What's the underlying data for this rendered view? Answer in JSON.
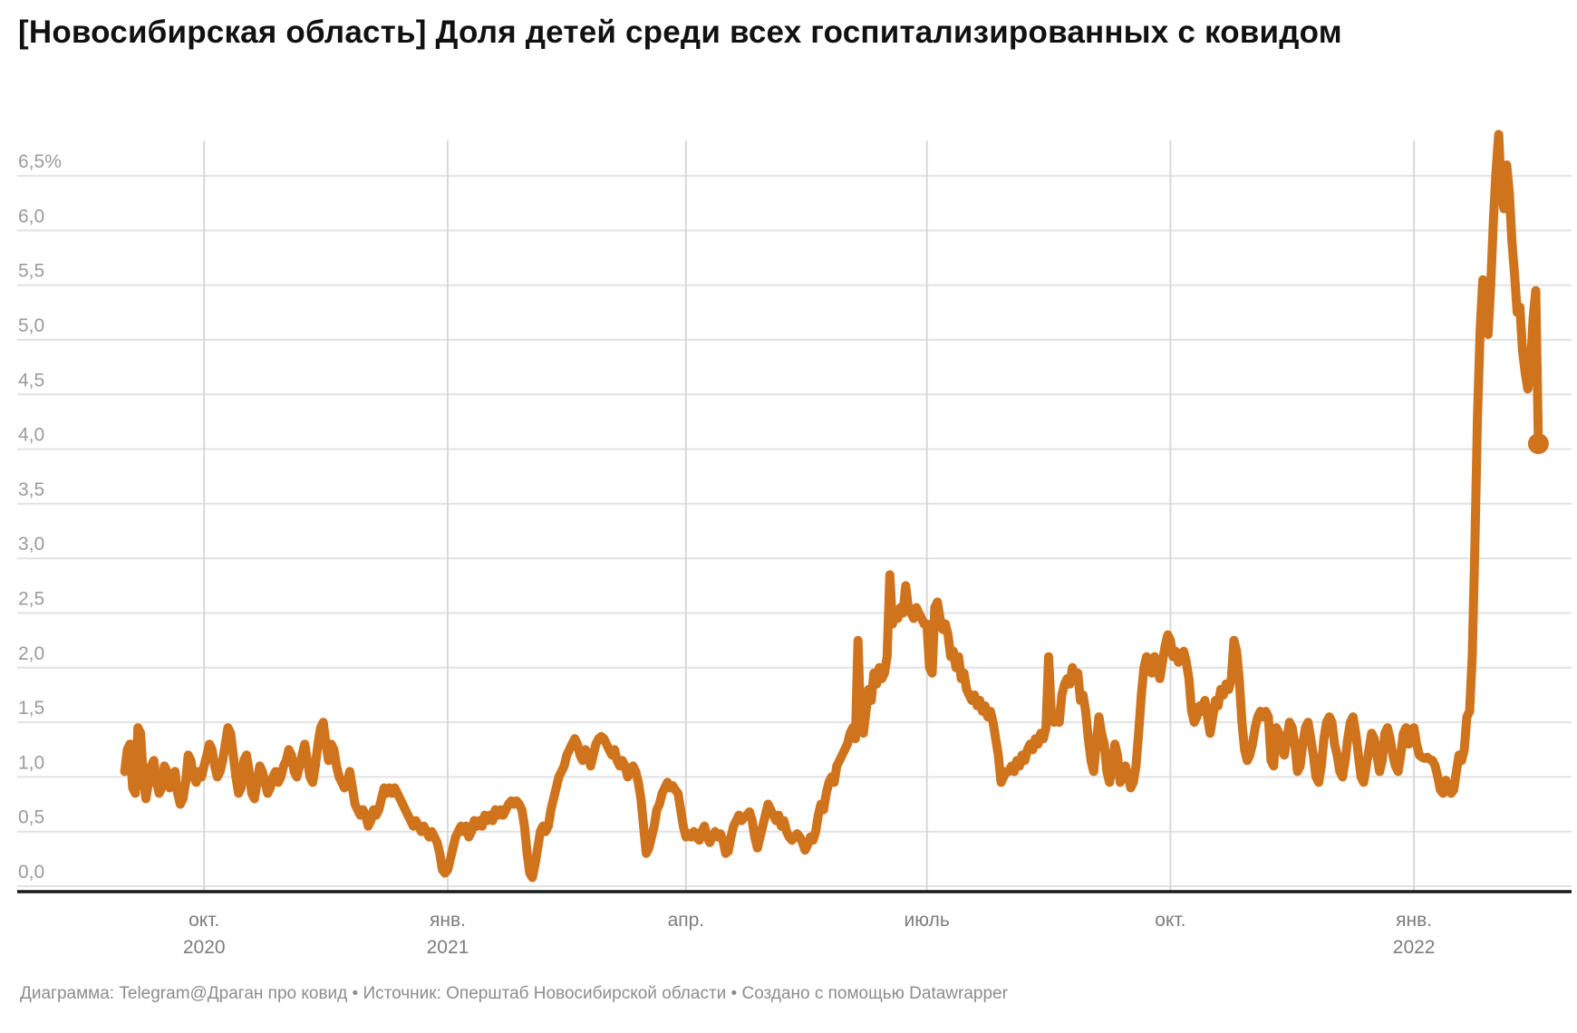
{
  "header": {
    "title": "[Новосибирская область] Доля детей среди всех госпитализированных с ковидом"
  },
  "footer": {
    "chart_label": "Диаграмма:",
    "chart_link": "Telegram@Драган про ковид",
    "separator": "•",
    "source_label": "Источник:",
    "source_name": "Оперштаб Новосибирской области",
    "created_label": "Создано с помощью",
    "tool_link": "Datawrapper"
  },
  "chart_data": {
    "type": "line",
    "title": "[Новосибирская область] Доля детей среди всех госпитализированных с ковидом",
    "unit": "%",
    "frequency": "daily",
    "start_date": "2020-09-01",
    "end_date": "2022-02-17",
    "ylim": [
      0,
      6.5
    ],
    "grid": true,
    "line_color": "#cf731d",
    "axis_color": "#191919",
    "gridline_color": "#e2e2e2",
    "vgridline_color": "#d8d8d8",
    "ylabel_color": "#9b9b9b",
    "xlabel_color": "#7d7d7d",
    "last_value": 4.05,
    "y_ticks": [
      {
        "value": 6.5,
        "label": "6,5%"
      },
      {
        "value": 6.0,
        "label": "6,0"
      },
      {
        "value": 5.5,
        "label": "5,5"
      },
      {
        "value": 5.0,
        "label": "5,0"
      },
      {
        "value": 4.5,
        "label": "4,5"
      },
      {
        "value": 4.0,
        "label": "4,0"
      },
      {
        "value": 3.5,
        "label": "3,5"
      },
      {
        "value": 3.0,
        "label": "3,0"
      },
      {
        "value": 2.5,
        "label": "2,5"
      },
      {
        "value": 2.0,
        "label": "2,0"
      },
      {
        "value": 1.5,
        "label": "1,5"
      },
      {
        "value": 1.0,
        "label": "1,0"
      },
      {
        "value": 0.5,
        "label": "0,5"
      },
      {
        "value": 0.0,
        "label": "0,0"
      }
    ],
    "x_ticks": [
      {
        "label": "окт.",
        "year": "2020",
        "index": 30
      },
      {
        "label": "янв.",
        "year": "2021",
        "index": 122
      },
      {
        "label": "апр.",
        "year": "",
        "index": 212
      },
      {
        "label": "июль",
        "year": "",
        "index": 303
      },
      {
        "label": "окт.",
        "year": "",
        "index": 395
      },
      {
        "label": "янв.",
        "year": "2022",
        "index": 487
      }
    ],
    "values": [
      1.05,
      1.25,
      1.3,
      0.9,
      0.85,
      1.45,
      1.4,
      1.0,
      0.8,
      0.95,
      1.1,
      1.15,
      0.95,
      0.85,
      0.9,
      1.1,
      1.05,
      0.9,
      1.0,
      1.05,
      0.85,
      0.75,
      0.8,
      0.95,
      1.2,
      1.15,
      1.0,
      0.95,
      1.05,
      1.0,
      1.1,
      1.2,
      1.3,
      1.25,
      1.1,
      1.0,
      1.05,
      1.15,
      1.3,
      1.45,
      1.4,
      1.2,
      1.0,
      0.85,
      0.9,
      1.15,
      1.2,
      1.05,
      0.85,
      0.8,
      0.95,
      1.1,
      1.05,
      0.95,
      0.85,
      0.9,
      1.0,
      1.05,
      0.95,
      1.0,
      1.1,
      1.15,
      1.25,
      1.2,
      1.05,
      1.0,
      1.1,
      1.2,
      1.3,
      1.15,
      1.0,
      0.95,
      1.1,
      1.3,
      1.45,
      1.5,
      1.3,
      1.15,
      1.3,
      1.25,
      1.1,
      1.0,
      0.95,
      0.9,
      0.95,
      1.05,
      0.9,
      0.75,
      0.7,
      0.65,
      0.7,
      0.65,
      0.55,
      0.6,
      0.7,
      0.65,
      0.7,
      0.8,
      0.9,
      0.85,
      0.9,
      0.85,
      0.9,
      0.85,
      0.8,
      0.75,
      0.7,
      0.65,
      0.6,
      0.55,
      0.6,
      0.55,
      0.5,
      0.55,
      0.5,
      0.45,
      0.5,
      0.45,
      0.4,
      0.3,
      0.15,
      0.12,
      0.15,
      0.25,
      0.35,
      0.45,
      0.5,
      0.55,
      0.5,
      0.55,
      0.45,
      0.5,
      0.6,
      0.55,
      0.6,
      0.55,
      0.65,
      0.6,
      0.65,
      0.6,
      0.7,
      0.65,
      0.7,
      0.65,
      0.7,
      0.75,
      0.78,
      0.75,
      0.78,
      0.75,
      0.7,
      0.55,
      0.3,
      0.12,
      0.08,
      0.2,
      0.35,
      0.5,
      0.55,
      0.5,
      0.55,
      0.7,
      0.8,
      0.9,
      1.0,
      1.05,
      1.1,
      1.2,
      1.25,
      1.3,
      1.35,
      1.3,
      1.2,
      1.15,
      1.25,
      1.2,
      1.1,
      1.2,
      1.3,
      1.35,
      1.37,
      1.35,
      1.3,
      1.25,
      1.2,
      1.25,
      1.15,
      1.1,
      1.15,
      1.1,
      1.0,
      1.05,
      1.1,
      1.05,
      0.95,
      0.8,
      0.55,
      0.3,
      0.35,
      0.45,
      0.55,
      0.7,
      0.75,
      0.85,
      0.9,
      0.95,
      0.9,
      0.92,
      0.88,
      0.85,
      0.7,
      0.55,
      0.45,
      0.48,
      0.45,
      0.5,
      0.45,
      0.42,
      0.5,
      0.55,
      0.45,
      0.4,
      0.45,
      0.5,
      0.45,
      0.48,
      0.42,
      0.3,
      0.32,
      0.45,
      0.55,
      0.6,
      0.65,
      0.6,
      0.63,
      0.65,
      0.68,
      0.6,
      0.45,
      0.35,
      0.45,
      0.55,
      0.65,
      0.75,
      0.7,
      0.65,
      0.6,
      0.65,
      0.55,
      0.6,
      0.5,
      0.45,
      0.42,
      0.45,
      0.48,
      0.45,
      0.4,
      0.33,
      0.38,
      0.45,
      0.42,
      0.5,
      0.65,
      0.75,
      0.7,
      0.85,
      0.95,
      1.0,
      0.95,
      1.1,
      1.15,
      1.2,
      1.25,
      1.3,
      1.4,
      1.45,
      1.35,
      2.25,
      1.5,
      1.4,
      1.6,
      1.8,
      1.7,
      1.95,
      1.85,
      2.0,
      1.9,
      1.95,
      2.1,
      2.85,
      2.4,
      2.5,
      2.45,
      2.55,
      2.5,
      2.75,
      2.55,
      2.5,
      2.45,
      2.55,
      2.5,
      2.45,
      2.4,
      2.4,
      2.0,
      1.95,
      2.55,
      2.6,
      2.45,
      2.35,
      2.4,
      2.3,
      2.1,
      2.15,
      2.0,
      2.1,
      1.9,
      1.95,
      1.8,
      1.75,
      1.7,
      1.75,
      1.65,
      1.7,
      1.6,
      1.65,
      1.55,
      1.6,
      1.5,
      1.35,
      1.2,
      0.95,
      1.0,
      1.05,
      1.05,
      1.1,
      1.05,
      1.15,
      1.1,
      1.2,
      1.15,
      1.25,
      1.3,
      1.25,
      1.35,
      1.3,
      1.4,
      1.35,
      1.45,
      2.1,
      1.6,
      1.5,
      1.55,
      1.5,
      1.75,
      1.85,
      1.9,
      1.85,
      2.0,
      1.9,
      1.95,
      1.7,
      1.75,
      1.6,
      1.35,
      1.15,
      1.05,
      1.3,
      1.55,
      1.4,
      1.3,
      1.05,
      0.95,
      1.1,
      1.3,
      1.2,
      0.95,
      1.05,
      1.1,
      1.0,
      0.9,
      0.95,
      1.1,
      1.4,
      1.75,
      2.0,
      2.1,
      2.05,
      1.95,
      2.1,
      2.0,
      1.9,
      2.05,
      2.2,
      2.3,
      2.25,
      2.1,
      2.15,
      2.05,
      2.1,
      2.15,
      2.05,
      1.9,
      1.6,
      1.5,
      1.55,
      1.65,
      1.6,
      1.7,
      1.55,
      1.4,
      1.55,
      1.7,
      1.65,
      1.8,
      1.75,
      1.85,
      1.8,
      1.9,
      2.25,
      2.15,
      1.9,
      1.5,
      1.25,
      1.15,
      1.2,
      1.3,
      1.45,
      1.55,
      1.6,
      1.55,
      1.6,
      1.55,
      1.15,
      1.1,
      1.45,
      1.4,
      1.25,
      1.2,
      1.35,
      1.5,
      1.45,
      1.3,
      1.05,
      1.1,
      1.3,
      1.45,
      1.5,
      1.35,
      1.2,
      1.0,
      0.95,
      1.1,
      1.35,
      1.5,
      1.55,
      1.5,
      1.3,
      1.2,
      1.05,
      1.0,
      1.15,
      1.35,
      1.5,
      1.55,
      1.4,
      1.2,
      1.0,
      0.95,
      1.1,
      1.25,
      1.4,
      1.35,
      1.2,
      1.05,
      1.15,
      1.4,
      1.45,
      1.35,
      1.2,
      1.1,
      1.05,
      1.2,
      1.4,
      1.45,
      1.3,
      1.4,
      1.45,
      1.3,
      1.2,
      1.18,
      1.17,
      1.18,
      1.16,
      1.15,
      1.1,
      1.0,
      0.88,
      0.85,
      0.97,
      0.9,
      0.85,
      0.88,
      1.05,
      1.2,
      1.15,
      1.25,
      1.55,
      1.6,
      2.1,
      3.1,
      4.3,
      5.1,
      5.55,
      5.1,
      5.05,
      5.5,
      6.1,
      6.55,
      6.88,
      6.35,
      6.2,
      6.6,
      6.35,
      5.9,
      5.6,
      5.25,
      5.3,
      4.9,
      4.7,
      4.55,
      4.75,
      5.2,
      5.45,
      4.05
    ]
  }
}
